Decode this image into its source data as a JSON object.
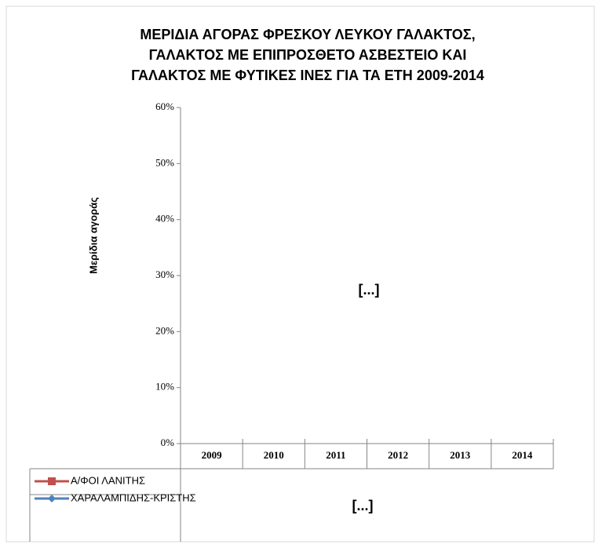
{
  "chart_data": {
    "type": "line",
    "title": [
      "ΜΕΡΙΔΙΑ ΑΓΟΡΑΣ ΦΡΕΣΚΟΥ ΛΕΥΚΟΥ ΓΑΛΑΚΤΟΣ,",
      "ΓΑΛΑΚΤΟΣ ΜΕ ΕΠΙΠΡΟΣΘΕΤΟ ΑΣΒΕΣΤΕΙΟ ΚΑΙ",
      "ΓΑΛΑΚΤΟΣ ΜΕ ΦΥΤΙΚΕΣ ΙΝΕΣ ΓΙΑ ΤΑ ΕΤΗ 2009-2014"
    ],
    "y_label": "Μερίδια αγοράς",
    "categories": [
      "2009",
      "2010",
      "2011",
      "2012",
      "2013",
      "2014"
    ],
    "series": [
      {
        "name": "Α/ΦΟΙ ΛΑΝΙΤΗΣ",
        "color": "#c0504d",
        "marker": "square",
        "values": [
          null,
          null,
          null,
          null,
          null,
          null
        ]
      },
      {
        "name": "ΧΑΡΑΛΑΜΠΙΔΗΣ-ΚΡΙΣΤΗΣ",
        "color": "#4f81bd",
        "marker": "diamond",
        "values": [
          null,
          null,
          null,
          null,
          null,
          null
        ]
      }
    ],
    "ylim": [
      0,
      60
    ],
    "yticks": [
      {
        "value": 0,
        "label": "0%"
      },
      {
        "value": 10,
        "label": "10%"
      },
      {
        "value": 20,
        "label": "20%"
      },
      {
        "value": 30,
        "label": "30%"
      },
      {
        "value": 40,
        "label": "40%"
      },
      {
        "value": 50,
        "label": "50%"
      },
      {
        "value": 60,
        "label": "60%"
      }
    ],
    "annotations": [
      "[...]",
      "[...]"
    ],
    "legend": "data-table"
  }
}
